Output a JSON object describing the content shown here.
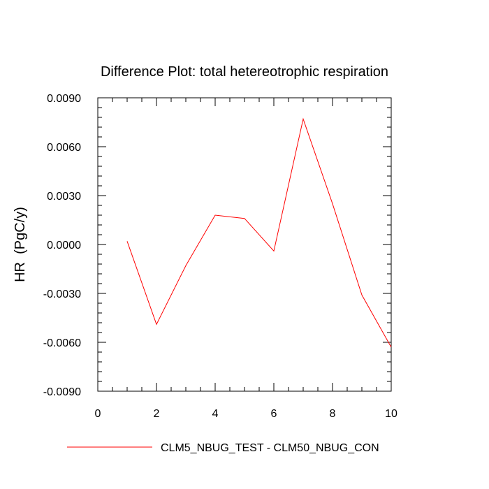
{
  "chart_data": {
    "type": "line",
    "title": "Difference Plot: total hetereotrophic respiration",
    "xlabel": "",
    "ylabel": "HR  (PgC/y)",
    "xlim": [
      0,
      10
    ],
    "ylim": [
      -0.009,
      0.009
    ],
    "x_ticks": [
      0,
      2,
      4,
      6,
      8,
      10
    ],
    "x_tick_labels": [
      "0",
      "2",
      "4",
      "6",
      "8",
      "10"
    ],
    "y_ticks": [
      -0.009,
      -0.006,
      -0.003,
      0.0,
      0.003,
      0.006,
      0.009
    ],
    "y_tick_labels": [
      "-0.0090",
      "-0.0060",
      "-0.0030",
      "0.0000",
      "0.0030",
      "0.0060",
      "0.0090"
    ],
    "grid": false,
    "legend_position": "bottom",
    "series": [
      {
        "name": "CLM5_NBUG_TEST - CLM50_NBUG_CON",
        "color": "#ff0000",
        "x": [
          1,
          2,
          3,
          4,
          5,
          6,
          7,
          8,
          9,
          10
        ],
        "y": [
          0.0002,
          -0.0049,
          -0.0013,
          0.0018,
          0.0016,
          -0.0004,
          0.0077,
          0.0025,
          -0.0031,
          -0.0063
        ]
      }
    ]
  }
}
